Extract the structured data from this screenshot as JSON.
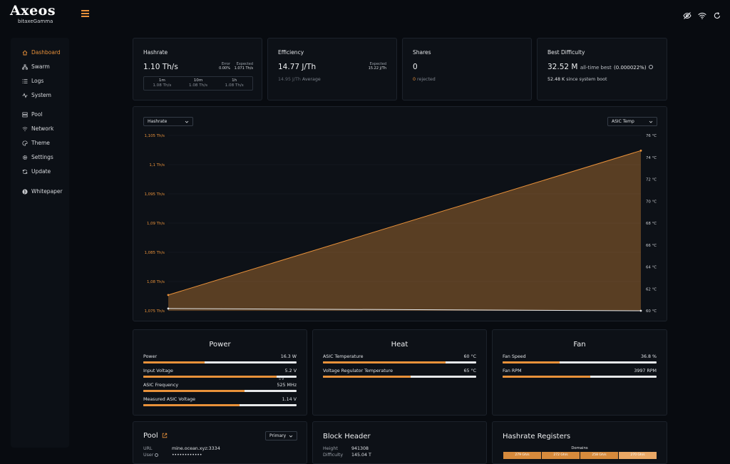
{
  "app": {
    "logo_title": "Axeos",
    "logo_subtitle": "bitaxeGamma"
  },
  "sidebar": {
    "items": [
      {
        "label": "Dashboard",
        "icon": "home-icon",
        "active": true
      },
      {
        "label": "Swarm",
        "icon": "sitemap-icon"
      },
      {
        "label": "Logs",
        "icon": "list-icon"
      },
      {
        "label": "System",
        "icon": "activity-icon"
      },
      {
        "label": "Pool",
        "icon": "server-icon"
      },
      {
        "label": "Network",
        "icon": "wifi-icon"
      },
      {
        "label": "Theme",
        "icon": "palette-icon"
      },
      {
        "label": "Settings",
        "icon": "gear-icon"
      },
      {
        "label": "Update",
        "icon": "refresh-icon"
      },
      {
        "label": "Whitepaper",
        "icon": "bitcoin-icon"
      }
    ]
  },
  "stats": {
    "hashrate": {
      "title": "Hashrate",
      "value": "1.10 Th/s",
      "error_label": "Error",
      "error_value": "0.00%",
      "expected_label": "Expected",
      "expected_value": "1.071 Th/s",
      "windows": [
        {
          "label": "1m",
          "value": "1.08 Th/s"
        },
        {
          "label": "10m",
          "value": "1.08 Th/s"
        },
        {
          "label": "1h",
          "value": "1.08 Th/s"
        }
      ]
    },
    "efficiency": {
      "title": "Efficiency",
      "value": "14.77 J/Th",
      "expected_label": "Expected",
      "expected_value": "15.22 J/Th",
      "average_value": "14.95 J/Th",
      "average_label": "Average"
    },
    "shares": {
      "title": "Shares",
      "value": "0",
      "rejected_count": "0",
      "rejected_label": "rejected"
    },
    "best_difficulty": {
      "title": "Best Difficulty",
      "value": "32.52 M",
      "alltime_label": "all-time best",
      "percent": "(0.000022%)",
      "since_boot_value": "52.48 K",
      "since_boot_label": "since system boot"
    }
  },
  "chart_controls": {
    "left_select": "Hashrate",
    "right_select": "ASIC Temp"
  },
  "chart_data": {
    "type": "area",
    "x": [
      0,
      1
    ],
    "series": [
      {
        "values": [
          1.0777,
          1.1024
        ],
        "axis": "left",
        "color": "#e8913a"
      },
      {
        "values": [
          60.2,
          60.0
        ],
        "axis": "right",
        "color": "#e6e8ea"
      }
    ],
    "left_axis": {
      "ticks": [
        "1,105 Th/s",
        "1,1 Th/s",
        "1,095 Th/s",
        "1,09 Th/s",
        "1,085 Th/s",
        "1,08 Th/s",
        "1,075 Th/s"
      ],
      "ylim": [
        1.075,
        1.105
      ]
    },
    "right_axis": {
      "ticks": [
        "76 °C",
        "74 °C",
        "72 °C",
        "70 °C",
        "68 °C",
        "66 °C",
        "64 °C",
        "62 °C",
        "60 °C"
      ],
      "ylim": [
        60,
        76
      ]
    },
    "grid": true
  },
  "power": {
    "title": "Power",
    "metrics": [
      {
        "label": "Power",
        "value": "16.3 W",
        "fill": 0.4
      },
      {
        "label": "Input Voltage",
        "value": "5.2 V",
        "fill": 0.87,
        "marker": "5 V"
      },
      {
        "label": "ASIC Frequency",
        "value": "525 MHz",
        "fill": 0.66
      },
      {
        "label": "Measured ASIC Voltage",
        "value": "1.14 V",
        "fill": 0.63
      }
    ]
  },
  "heat": {
    "title": "Heat",
    "metrics": [
      {
        "label": "ASIC Temperature",
        "value": "60 °C",
        "fill": 0.8
      },
      {
        "label": "Voltage Regulator Temperature",
        "value": "65 °C",
        "fill": 0.57
      }
    ]
  },
  "fan": {
    "title": "Fan",
    "metrics": [
      {
        "label": "Fan Speed",
        "value": "36.8 %",
        "fill": 0.37
      },
      {
        "label": "Fan RPM",
        "value": "3997 RPM",
        "fill": 0.57
      }
    ]
  },
  "pool": {
    "title": "Pool",
    "select": "Primary",
    "url_label": "URL",
    "url_value": "mine.ocean.xyz:3334",
    "user_label": "User",
    "user_value": "••••••••••••"
  },
  "block_header": {
    "title": "Block Header",
    "height_label": "Height",
    "height_value": "941308",
    "difficulty_label": "Difficulty",
    "difficulty_value": "145.04 T"
  },
  "registers": {
    "title": "Hashrate Registers",
    "domains_label": "Domains",
    "cells": [
      "279 Gh/s",
      "272 Gh/s",
      "258 Gh/s",
      "270 Gh/s"
    ]
  }
}
